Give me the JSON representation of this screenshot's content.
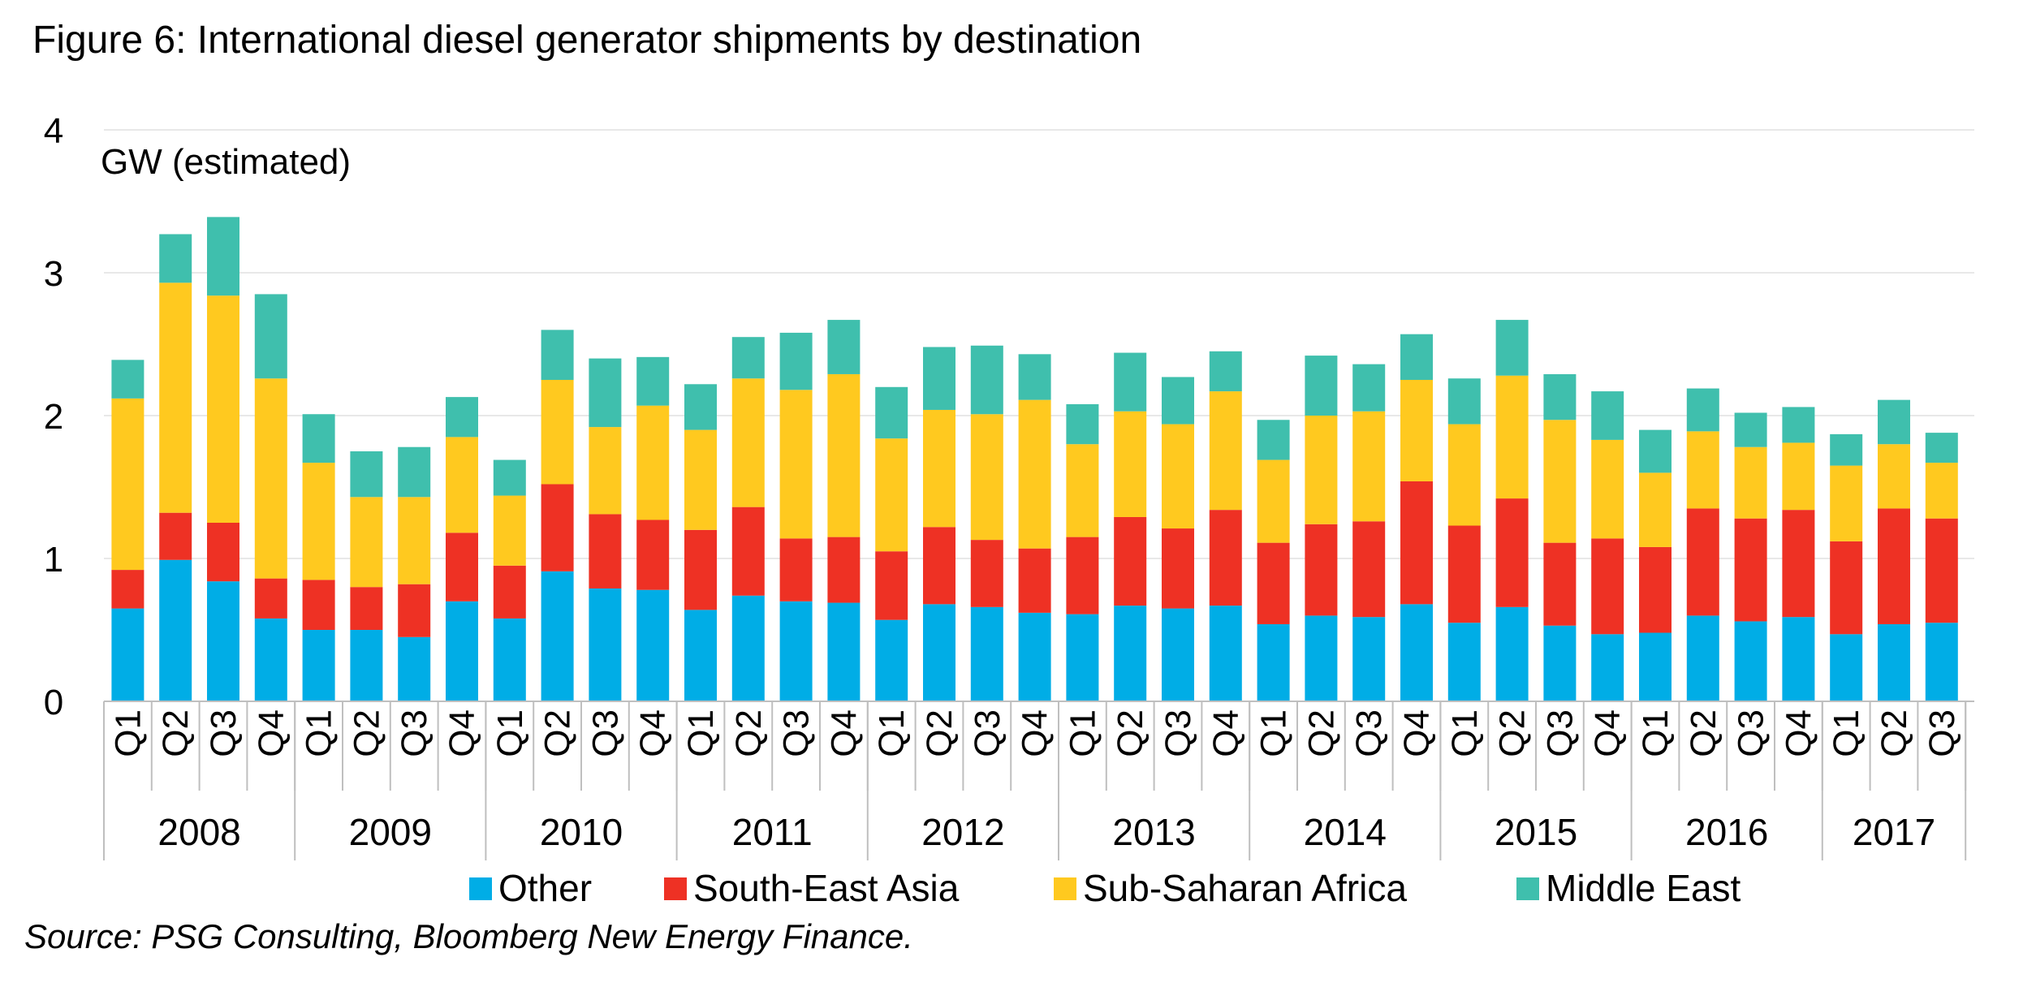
{
  "title": "Figure 6: International diesel generator shipments by destination",
  "source": "Source: PSG Consulting, Bloomberg New Energy Finance.",
  "chart_data": {
    "type": "bar",
    "stacked": true,
    "ylabel": "GW (estimated)",
    "ylim": [
      0,
      4
    ],
    "yticks": [
      "0",
      "1",
      "2",
      "3",
      "4"
    ],
    "grid": true,
    "legend_position": "bottom",
    "years": [
      {
        "label": "2008",
        "quarters": 4
      },
      {
        "label": "2009",
        "quarters": 4
      },
      {
        "label": "2010",
        "quarters": 4
      },
      {
        "label": "2011",
        "quarters": 4
      },
      {
        "label": "2012",
        "quarters": 4
      },
      {
        "label": "2013",
        "quarters": 4
      },
      {
        "label": "2014",
        "quarters": 4
      },
      {
        "label": "2015",
        "quarters": 4
      },
      {
        "label": "2016",
        "quarters": 4
      },
      {
        "label": "2017",
        "quarters": 3
      }
    ],
    "categories": [
      "Q1",
      "Q2",
      "Q3",
      "Q4",
      "Q1",
      "Q2",
      "Q3",
      "Q4",
      "Q1",
      "Q2",
      "Q3",
      "Q4",
      "Q1",
      "Q2",
      "Q3",
      "Q4",
      "Q1",
      "Q2",
      "Q3",
      "Q4",
      "Q1",
      "Q2",
      "Q3",
      "Q4",
      "Q1",
      "Q2",
      "Q3",
      "Q4",
      "Q1",
      "Q2",
      "Q3",
      "Q4",
      "Q1",
      "Q2",
      "Q3",
      "Q4",
      "Q1",
      "Q2",
      "Q3"
    ],
    "series": [
      {
        "name": "Other",
        "color": "#00ADE6",
        "values": [
          0.65,
          0.99,
          0.84,
          0.58,
          0.5,
          0.5,
          0.45,
          0.7,
          0.58,
          0.91,
          0.79,
          0.78,
          0.64,
          0.74,
          0.7,
          0.69,
          0.57,
          0.68,
          0.66,
          0.62,
          0.61,
          0.67,
          0.65,
          0.67,
          0.54,
          0.6,
          0.59,
          0.68,
          0.55,
          0.66,
          0.53,
          0.47,
          0.48,
          0.6,
          0.56,
          0.59,
          0.47,
          0.54,
          0.55
        ]
      },
      {
        "name": "South-East Asia",
        "color": "#EE3124",
        "values": [
          0.27,
          0.33,
          0.41,
          0.28,
          0.35,
          0.3,
          0.37,
          0.48,
          0.37,
          0.61,
          0.52,
          0.49,
          0.56,
          0.62,
          0.44,
          0.46,
          0.48,
          0.54,
          0.47,
          0.45,
          0.54,
          0.62,
          0.56,
          0.67,
          0.57,
          0.64,
          0.67,
          0.86,
          0.68,
          0.76,
          0.58,
          0.67,
          0.6,
          0.75,
          0.72,
          0.75,
          0.65,
          0.81,
          0.73
        ]
      },
      {
        "name": "Sub-Saharan Africa",
        "color": "#FFC91F",
        "values": [
          1.2,
          1.61,
          1.59,
          1.4,
          0.82,
          0.63,
          0.61,
          0.67,
          0.49,
          0.73,
          0.61,
          0.8,
          0.7,
          0.9,
          1.04,
          1.14,
          0.79,
          0.82,
          0.88,
          1.04,
          0.65,
          0.74,
          0.73,
          0.83,
          0.58,
          0.76,
          0.77,
          0.71,
          0.71,
          0.86,
          0.86,
          0.69,
          0.52,
          0.54,
          0.5,
          0.47,
          0.53,
          0.45,
          0.39
        ]
      },
      {
        "name": "Middle East",
        "color": "#3FBFAD",
        "values": [
          0.27,
          0.34,
          0.55,
          0.59,
          0.34,
          0.32,
          0.35,
          0.28,
          0.25,
          0.35,
          0.48,
          0.34,
          0.32,
          0.29,
          0.4,
          0.38,
          0.36,
          0.44,
          0.48,
          0.32,
          0.28,
          0.41,
          0.33,
          0.28,
          0.28,
          0.42,
          0.33,
          0.32,
          0.32,
          0.39,
          0.32,
          0.34,
          0.3,
          0.3,
          0.24,
          0.25,
          0.22,
          0.31,
          0.21
        ]
      }
    ]
  }
}
